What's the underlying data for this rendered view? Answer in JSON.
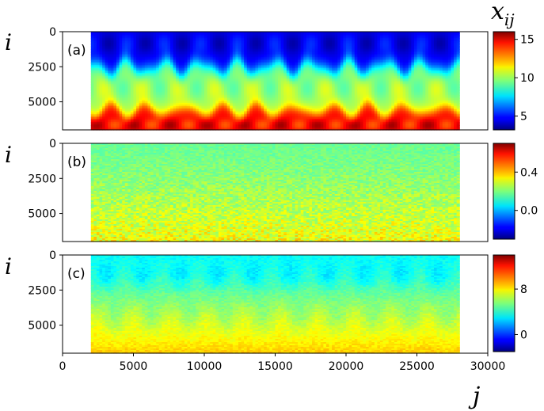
{
  "chart_data": {
    "type": "heatmap",
    "figure": {
      "xlabel": "j",
      "ylabel": "i",
      "colorbar_label_base": "x",
      "colorbar_label_sub": "ij",
      "x_range": [
        0,
        30000
      ],
      "x_ticks": [
        "0",
        "5000",
        "10000",
        "15000",
        "20000",
        "25000",
        "30000"
      ],
      "data_x_extent": [
        2000,
        28000
      ]
    },
    "panels": [
      {
        "id": "a",
        "label": "(a)",
        "y_range": [
          0,
          7000
        ],
        "y_ticks": [
          "0",
          "2500",
          "5000"
        ],
        "colorbar": {
          "range": [
            3.2,
            16
          ],
          "ticks": [
            5,
            10,
            15
          ],
          "tick_labels": [
            "5",
            "10",
            "15"
          ]
        },
        "field": {
          "low_band_value": 4.5,
          "mid_band_value": 10,
          "high_band_value": 14.5,
          "blob_period_j": 2600
        }
      },
      {
        "id": "b",
        "label": "(b)",
        "y_range": [
          0,
          7000
        ],
        "y_ticks": [
          "0",
          "2500",
          "5000"
        ],
        "colorbar": {
          "range": [
            -0.3,
            0.7
          ],
          "ticks": [
            0.0,
            0.4
          ],
          "tick_labels": [
            "0.0",
            "0.4"
          ]
        },
        "field": {
          "top_value": 0.18,
          "bottom_value": 0.32,
          "noise": 0.06
        }
      },
      {
        "id": "c",
        "label": "(c)",
        "y_range": [
          0,
          7000
        ],
        "y_ticks": [
          "0",
          "2500",
          "5000"
        ],
        "colorbar": {
          "range": [
            -3,
            14
          ],
          "ticks": [
            0,
            8
          ],
          "tick_labels": [
            "0",
            "8"
          ]
        },
        "field": {
          "top_value": 3.5,
          "bottom_value": 8.5,
          "blob_period_j": 2600
        }
      }
    ],
    "colormap": "jet",
    "grid": false
  }
}
